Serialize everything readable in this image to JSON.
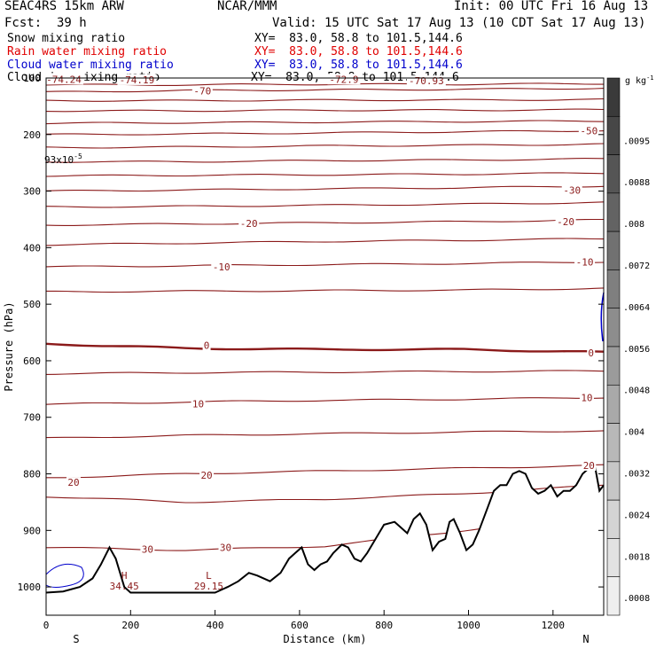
{
  "header": {
    "model": "SEAC4RS 15km ARW",
    "center": "NCAR/MMM",
    "init": "Init: 00 UTC Fri 16 Aug 13",
    "fcst_label": "Fcst:",
    "fcst_value": "39 h",
    "valid": "Valid: 15 UTC Sat 17 Aug 13 (10 CDT Sat 17 Aug 13)"
  },
  "legend": [
    {
      "name": "Snow mixing ratio",
      "xy": "XY=  83.0, 58.8 to 101.5,144.6",
      "color": "#000000"
    },
    {
      "name": "Rain water mixing ratio",
      "xy": "XY=  83.0, 58.8 to 101.5,144.6",
      "color": "#e00000"
    },
    {
      "name": "Cloud water mixing ratio",
      "xy": "XY=  83.0, 58.8 to 101.5,144.6",
      "color": "#0000cc"
    },
    {
      "name": "Cloud ice mixing ratio",
      "xy": "XY=  83.0, 58.8 to 101.5,144.6",
      "color": "#000000"
    }
  ],
  "chart_data": {
    "type": "contour",
    "xlabel": "Distance (km)",
    "ylabel": "Pressure (hPa)",
    "xlim": [
      0,
      1320
    ],
    "ylim": [
      1050,
      100
    ],
    "x_ticks": [
      "0",
      "200",
      "400",
      "600",
      "800",
      "1000",
      "1200"
    ],
    "y_ticks": [
      "100",
      "200",
      "300",
      "400",
      "500",
      "600",
      "700",
      "800",
      "900",
      "1000"
    ],
    "x_endpoints": [
      "S",
      "N"
    ],
    "small_note": "93x10",
    "small_note_exp": "-5",
    "isotherms": [
      {
        "t": -75,
        "p": [
          112,
          112,
          111,
          111,
          110
        ]
      },
      {
        "t": -70,
        "p": [
          125,
          122,
          121,
          120,
          118
        ]
      },
      {
        "t": -65,
        "p": [
          140,
          140,
          139,
          139,
          138
        ]
      },
      {
        "t": -60,
        "p": [
          158,
          158,
          157,
          157,
          156
        ]
      },
      {
        "t": -55,
        "p": [
          180,
          179,
          178,
          177,
          176
        ]
      },
      {
        "t": -50,
        "p": [
          200,
          199,
          197,
          195,
          193
        ]
      },
      {
        "t": -45,
        "p": [
          223,
          222,
          220,
          219,
          217
        ]
      },
      {
        "t": -40,
        "p": [
          248,
          248,
          246,
          245,
          243
        ]
      },
      {
        "t": -35,
        "p": [
          273,
          272,
          271,
          270,
          268
        ]
      },
      {
        "t": -30,
        "p": [
          300,
          298,
          296,
          294,
          291
        ]
      },
      {
        "t": -25,
        "p": [
          328,
          327,
          325,
          323,
          320
        ]
      },
      {
        "t": -20,
        "p": [
          360,
          358,
          356,
          354,
          351
        ]
      },
      {
        "t": -15,
        "p": [
          395,
          392,
          389,
          387,
          384
        ]
      },
      {
        "t": -10,
        "p": [
          434,
          432,
          430,
          428,
          425
        ]
      },
      {
        "t": -5,
        "p": [
          478,
          477,
          476,
          475,
          472
        ]
      },
      {
        "t": 0,
        "p": [
          570,
          578,
          580,
          580,
          585
        ]
      },
      {
        "t": 5,
        "p": [
          623,
          621,
          620,
          619,
          618
        ]
      },
      {
        "t": 10,
        "p": [
          677,
          673,
          670,
          668,
          665
        ]
      },
      {
        "t": 15,
        "p": [
          737,
          732,
          729,
          726,
          724
        ]
      },
      {
        "t": 20,
        "p": [
          807,
          800,
          795,
          790,
          785
        ]
      },
      {
        "t": 25,
        "p": [
          840,
          850,
          845,
          835,
          820
        ]
      },
      {
        "t": 30,
        "p": [
          930,
          935,
          928,
          900,
          870
        ]
      }
    ],
    "contour_labels": [
      {
        "text": "-74.24",
        "x": 42,
        "p": 102
      },
      {
        "text": "-74.19",
        "x": 215,
        "p": 103
      },
      {
        "text": "-72.9",
        "x": 705,
        "p": 102
      },
      {
        "text": "-70.93",
        "x": 900,
        "p": 105
      },
      {
        "text": "-70",
        "x": 370,
        "p": 123
      },
      {
        "text": "-50",
        "x": 1285,
        "p": 193
      },
      {
        "text": "-30",
        "x": 1245,
        "p": 298
      },
      {
        "text": "-20",
        "x": 480,
        "p": 357
      },
      {
        "text": "-20",
        "x": 1230,
        "p": 354
      },
      {
        "text": "-10",
        "x": 415,
        "p": 434
      },
      {
        "text": "-10",
        "x": 1275,
        "p": 425
      },
      {
        "text": "0",
        "x": 380,
        "p": 573
      },
      {
        "text": "0",
        "x": 1290,
        "p": 586
      },
      {
        "text": "10",
        "x": 360,
        "p": 676
      },
      {
        "text": "10",
        "x": 1280,
        "p": 665
      },
      {
        "text": "20",
        "x": 65,
        "p": 815
      },
      {
        "text": "20",
        "x": 380,
        "p": 802
      },
      {
        "text": "20",
        "x": 1285,
        "p": 785
      },
      {
        "text": "30",
        "x": 240,
        "p": 933
      },
      {
        "text": "30",
        "x": 425,
        "p": 930
      }
    ],
    "extrema": [
      {
        "mark": "H",
        "value": "34.45",
        "x": 185,
        "p": 1000
      },
      {
        "mark": "L",
        "value": "29.15",
        "x": 385,
        "p": 1000
      }
    ],
    "terrain": [
      [
        0,
        1010
      ],
      [
        40,
        1008
      ],
      [
        80,
        1000
      ],
      [
        110,
        985
      ],
      [
        130,
        960
      ],
      [
        150,
        930
      ],
      [
        165,
        950
      ],
      [
        185,
        1000
      ],
      [
        200,
        1010
      ],
      [
        300,
        1010
      ],
      [
        400,
        1010
      ],
      [
        430,
        1000
      ],
      [
        455,
        990
      ],
      [
        480,
        975
      ],
      [
        500,
        980
      ],
      [
        530,
        990
      ],
      [
        555,
        975
      ],
      [
        575,
        950
      ],
      [
        590,
        940
      ],
      [
        605,
        930
      ],
      [
        620,
        960
      ],
      [
        635,
        970
      ],
      [
        650,
        960
      ],
      [
        665,
        955
      ],
      [
        680,
        940
      ],
      [
        700,
        925
      ],
      [
        715,
        930
      ],
      [
        730,
        950
      ],
      [
        745,
        955
      ],
      [
        760,
        940
      ],
      [
        780,
        915
      ],
      [
        800,
        890
      ],
      [
        825,
        885
      ],
      [
        840,
        895
      ],
      [
        855,
        905
      ],
      [
        870,
        880
      ],
      [
        885,
        870
      ],
      [
        900,
        890
      ],
      [
        915,
        935
      ],
      [
        930,
        920
      ],
      [
        945,
        915
      ],
      [
        955,
        885
      ],
      [
        965,
        880
      ],
      [
        980,
        905
      ],
      [
        995,
        935
      ],
      [
        1010,
        925
      ],
      [
        1025,
        900
      ],
      [
        1045,
        860
      ],
      [
        1060,
        830
      ],
      [
        1075,
        820
      ],
      [
        1090,
        820
      ],
      [
        1105,
        800
      ],
      [
        1120,
        795
      ],
      [
        1135,
        800
      ],
      [
        1150,
        825
      ],
      [
        1165,
        835
      ],
      [
        1180,
        830
      ],
      [
        1195,
        820
      ],
      [
        1210,
        840
      ],
      [
        1225,
        830
      ],
      [
        1240,
        830
      ],
      [
        1255,
        820
      ],
      [
        1270,
        800
      ],
      [
        1285,
        790
      ],
      [
        1300,
        790
      ],
      [
        1310,
        830
      ],
      [
        1320,
        820
      ]
    ],
    "colorbar": {
      "unit": "g kg",
      "unit_exp": "-1",
      "ticks": [
        ".0095",
        ".0088",
        ".008",
        ".0072",
        ".0064",
        ".0056",
        ".0048",
        ".004",
        ".0032",
        ".0024",
        ".0018",
        ".0008"
      ],
      "colors": [
        "#3a3a3a",
        "#474747",
        "#555555",
        "#636363",
        "#717171",
        "#7f7f7f",
        "#8d8d8d",
        "#9b9b9b",
        "#a9a9a9",
        "#b8b8b8",
        "#c6c6c6",
        "#d4d4d4",
        "#e2e2e2",
        "#efefef"
      ]
    }
  }
}
